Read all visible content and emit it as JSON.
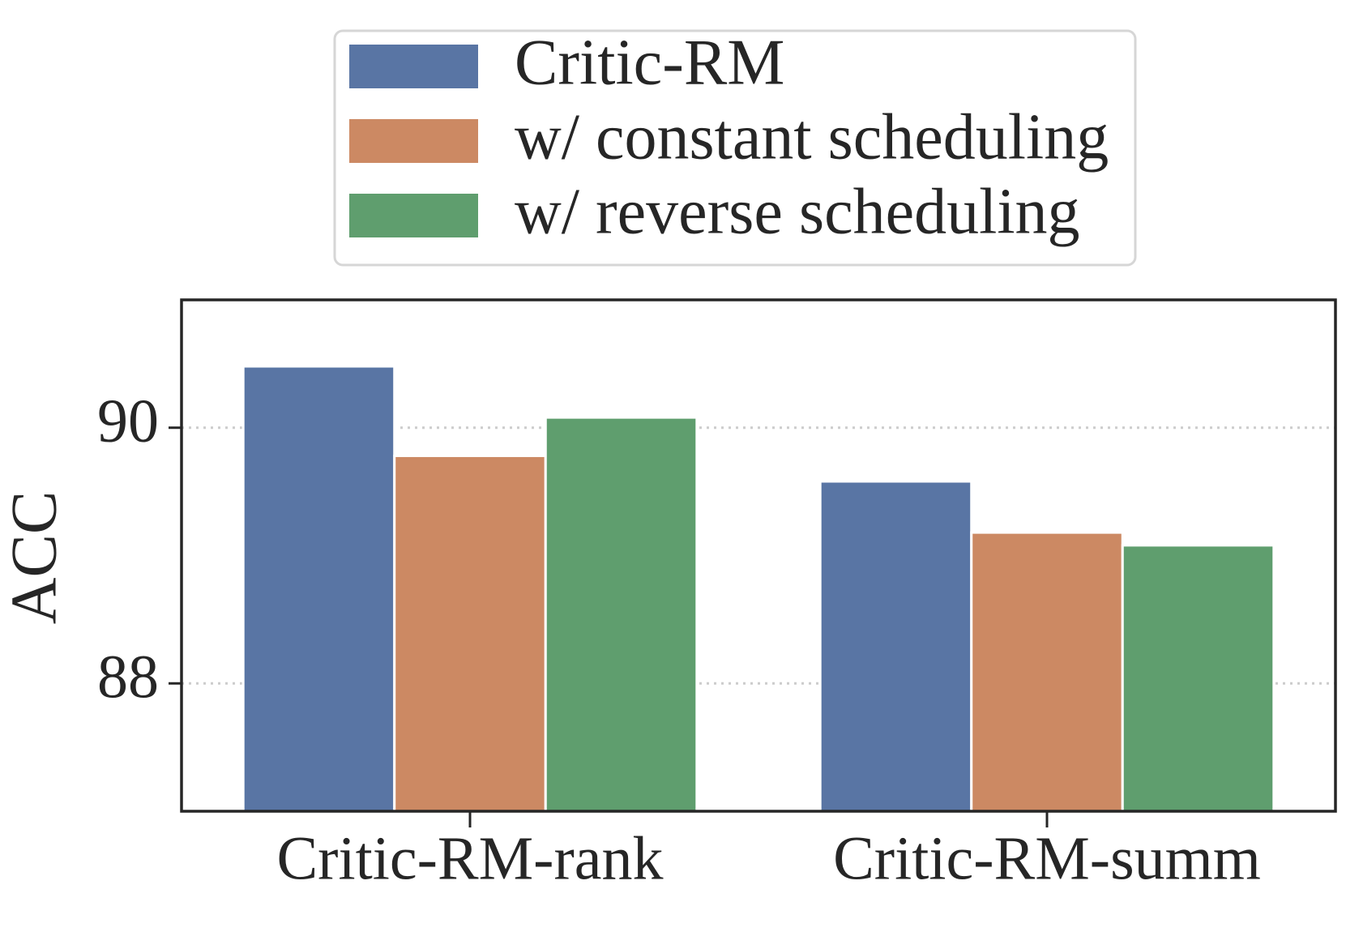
{
  "chart_data": {
    "type": "bar",
    "y_label": "ACC",
    "categories": [
      "Critic-RM-rank",
      "Critic-RM-summ"
    ],
    "series": [
      {
        "name": "Critic-RM",
        "color": "#5975a4",
        "values": [
          90.48,
          89.58
        ]
      },
      {
        "name": "w/ constant scheduling",
        "color": "#cc8963",
        "values": [
          89.78,
          89.18
        ]
      },
      {
        "name": "w/ reverse scheduling",
        "color": "#5f9e6e",
        "values": [
          90.08,
          89.08
        ]
      }
    ],
    "ylim": [
      87,
      91
    ],
    "yticks": [
      88,
      90
    ],
    "grid": true,
    "legend": "top"
  }
}
